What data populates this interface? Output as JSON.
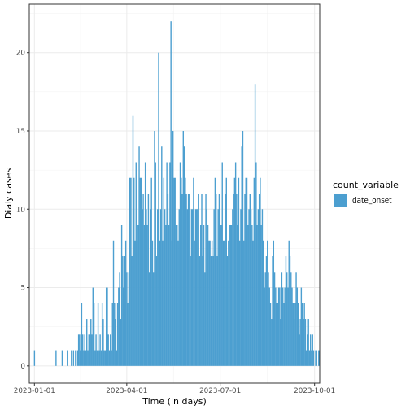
{
  "chart_data": {
    "type": "bar",
    "title": "",
    "xlabel": "Time (in days)",
    "ylabel": "Dialy cases",
    "x_ticks": [
      "2023-01-01",
      "2023-04-01",
      "2023-07-01",
      "2023-10-01"
    ],
    "y_ticks": [
      0,
      5,
      10,
      15,
      20
    ],
    "xlim": [
      "2022-12-27",
      "2023-10-06"
    ],
    "ylim": [
      -1.1,
      23.1
    ],
    "grid": true,
    "legend": {
      "title": "count_variable",
      "placement": "right",
      "entries": [
        "date_onset"
      ]
    },
    "series": [
      {
        "name": "date_onset",
        "color": "#4C9FD0",
        "start_date": "2023-01-01",
        "values": [
          1,
          0,
          0,
          0,
          0,
          0,
          0,
          0,
          0,
          0,
          0,
          0,
          0,
          0,
          0,
          0,
          0,
          0,
          0,
          0,
          0,
          1,
          0,
          0,
          0,
          0,
          0,
          1,
          0,
          0,
          0,
          0,
          1,
          0,
          0,
          0,
          1,
          0,
          1,
          0,
          1,
          0,
          1,
          2,
          2,
          1,
          4,
          2,
          1,
          2,
          1,
          3,
          1,
          2,
          2,
          3,
          2,
          5,
          4,
          1,
          2,
          1,
          4,
          1,
          2,
          1,
          4,
          3,
          1,
          1,
          5,
          5,
          2,
          1,
          2,
          1,
          4,
          8,
          4,
          3,
          1,
          4,
          5,
          6,
          3,
          9,
          7,
          5,
          7,
          8,
          6,
          4,
          6,
          12,
          12,
          7,
          16,
          12,
          8,
          13,
          8,
          9,
          14,
          12,
          12,
          10,
          11,
          9,
          13,
          10,
          9,
          11,
          6,
          10,
          12,
          8,
          6,
          15,
          13,
          7,
          10,
          20,
          8,
          10,
          14,
          8,
          12,
          10,
          9,
          13,
          11,
          9,
          13,
          22,
          8,
          15,
          12,
          12,
          9,
          9,
          8,
          10,
          13,
          12,
          11,
          15,
          14,
          12,
          11,
          10,
          11,
          11,
          7,
          10,
          10,
          12,
          8,
          10,
          10,
          10,
          11,
          7,
          9,
          11,
          7,
          9,
          6,
          11,
          10,
          9,
          8,
          8,
          7,
          8,
          7,
          10,
          12,
          11,
          7,
          10,
          11,
          9,
          9,
          13,
          8,
          8,
          11,
          12,
          7,
          8,
          9,
          9,
          9,
          10,
          11,
          12,
          13,
          11,
          9,
          12,
          8,
          10,
          14,
          15,
          8,
          11,
          12,
          12,
          9,
          10,
          11,
          10,
          9,
          8,
          12,
          18,
          13,
          9,
          10,
          11,
          12,
          9,
          10,
          8,
          5,
          6,
          7,
          8,
          6,
          5,
          4,
          3,
          7,
          8,
          6,
          5,
          4,
          4,
          5,
          5,
          3,
          6,
          5,
          4,
          5,
          7,
          6,
          5,
          8,
          7,
          6,
          5,
          4,
          3,
          4,
          6,
          5,
          4,
          2,
          3,
          5,
          4,
          3,
          4,
          3,
          1,
          2,
          3,
          1,
          2,
          1,
          2,
          1,
          0,
          1,
          1,
          0,
          1
        ]
      }
    ]
  }
}
